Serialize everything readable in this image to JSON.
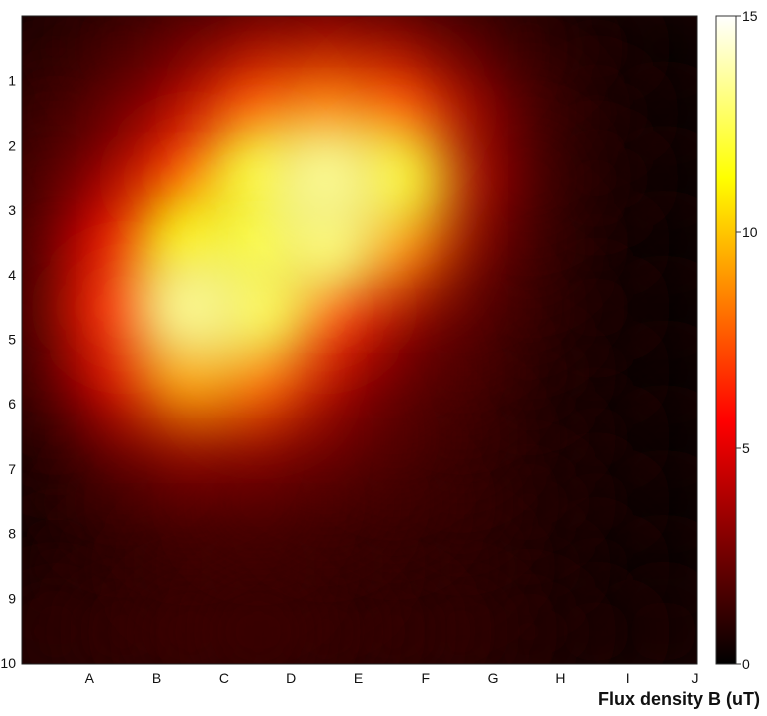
{
  "chart_data": {
    "type": "heatmap",
    "title": "",
    "colorbar_label": "Flux density B (uT)",
    "x_categories": [
      "A",
      "B",
      "C",
      "D",
      "E",
      "F",
      "G",
      "H",
      "I",
      "J"
    ],
    "y_categories": [
      "1",
      "2",
      "3",
      "4",
      "5",
      "6",
      "7",
      "8",
      "9",
      "10"
    ],
    "y_axis_corner_label": "10",
    "colorbar": {
      "min": 0,
      "max": 15,
      "ticks": [
        0,
        5,
        10,
        15
      ],
      "colormap": "hot"
    },
    "grid_values": [
      [
        0.8,
        1.3,
        2.0,
        2.8,
        3.2,
        2.6,
        1.6,
        0.9,
        0.5,
        0.3
      ],
      [
        1.2,
        2.0,
        3.5,
        7.0,
        8.0,
        7.0,
        3.0,
        1.3,
        0.6,
        0.3
      ],
      [
        1.5,
        3.0,
        6.5,
        12.0,
        13.5,
        12.0,
        3.5,
        1.3,
        0.6,
        0.3
      ],
      [
        1.8,
        5.0,
        11.0,
        12.0,
        13.0,
        8.0,
        2.5,
        1.2,
        0.5,
        0.3
      ],
      [
        1.8,
        6.5,
        13.5,
        12.5,
        6.5,
        3.0,
        1.8,
        1.0,
        0.5,
        0.3
      ],
      [
        1.5,
        4.5,
        9.0,
        7.5,
        3.5,
        2.0,
        1.5,
        0.8,
        0.4,
        0.3
      ],
      [
        0.8,
        2.0,
        3.0,
        2.8,
        2.2,
        1.6,
        1.2,
        0.7,
        0.4,
        0.3
      ],
      [
        0.6,
        1.2,
        1.6,
        1.6,
        1.4,
        1.3,
        1.1,
        0.7,
        0.4,
        0.3
      ],
      [
        0.6,
        0.9,
        1.2,
        1.3,
        1.2,
        1.0,
        0.9,
        0.6,
        0.4,
        0.3
      ],
      [
        0.9,
        1.1,
        1.3,
        1.3,
        1.2,
        1.1,
        1.0,
        0.7,
        0.5,
        0.4
      ]
    ]
  }
}
